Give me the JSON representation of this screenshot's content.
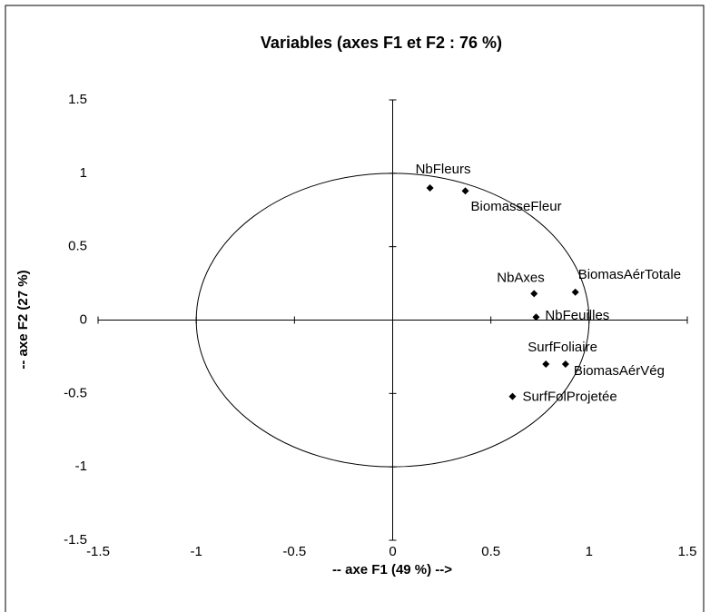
{
  "chart_data": {
    "type": "scatter",
    "title": "Variables (axes F1 et F2 : 76 %)",
    "x_label": "-- axe F1 (49 %) -->",
    "y_label": "-- axe F2 (27 %)",
    "categories": [
      "NbFleurs",
      "BiomasseFleur",
      "NbAxes",
      "BiomasAérTotale",
      "NbFeuilles",
      "SurfFoliaire",
      "BiomasAérVég",
      "SurfFolProjetée"
    ],
    "x": [
      0.19,
      0.37,
      0.72,
      0.93,
      0.73,
      0.78,
      0.88,
      0.61
    ],
    "values": [
      0.9,
      0.88,
      0.18,
      0.19,
      0.02,
      -0.3,
      -0.3,
      -0.52
    ],
    "color": "#000000",
    "circle_radius": 1,
    "xlim": [
      -1.5,
      1.5
    ],
    "xticks": [
      -1.5,
      -1,
      -0.5,
      0,
      0.5,
      1,
      1.5
    ],
    "ylim": [
      -1.5,
      1.5
    ],
    "yticks": [
      -1.5,
      -1,
      -0.5,
      0,
      0.5,
      1,
      1.5
    ]
  }
}
